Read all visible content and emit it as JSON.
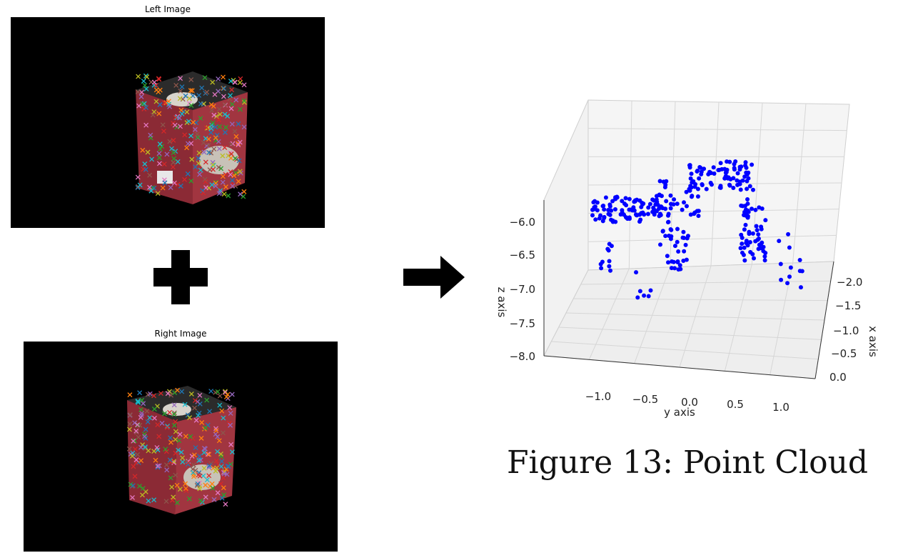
{
  "left_image": {
    "title": "Left Image"
  },
  "right_image": {
    "title": "Right Image"
  },
  "operator_icon": "plus-icon",
  "flow_icon": "arrow-right-icon",
  "caption": "Figure 13: Point Cloud",
  "colors": {
    "points": "#0000ff",
    "panel_bg": "#000000",
    "box_red": "#8b2a35"
  },
  "chart_data": {
    "type": "scatter",
    "projection": "3d",
    "series_color": "#0000ff",
    "xlabel": "y axis",
    "ylabel": "x axis",
    "zlabel": "z axis",
    "x_ticks": [
      "−1.0",
      "−0.5",
      "0.0",
      "0.5",
      "1.0"
    ],
    "y_ticks": [
      "−2.0",
      "−1.5",
      "−1.0",
      "−0.5",
      "0.0"
    ],
    "z_ticks": [
      "−6.0",
      "−6.5",
      "−7.0",
      "−7.5",
      "−8.0"
    ],
    "grid": true
  }
}
